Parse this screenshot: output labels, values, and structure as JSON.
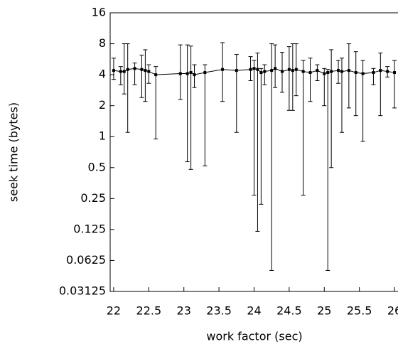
{
  "chart_data": {
    "type": "line",
    "xlabel": "work factor (sec)",
    "ylabel": "seek time (bytes)",
    "ylog": true,
    "color": "#000000",
    "xlim": [
      21.95,
      26.05
    ],
    "ylim": [
      0.03125,
      16
    ],
    "xticks": [
      22,
      22.5,
      23,
      23.5,
      24,
      24.5,
      25,
      25.5,
      26
    ],
    "yticks": [
      0.03125,
      0.0625,
      0.125,
      0.25,
      0.5,
      1,
      2,
      4,
      8,
      16
    ],
    "x": [
      22.0,
      22.1,
      22.15,
      22.2,
      22.3,
      22.4,
      22.45,
      22.5,
      22.6,
      22.95,
      23.05,
      23.1,
      23.15,
      23.3,
      23.55,
      23.75,
      23.95,
      24.0,
      24.05,
      24.1,
      24.15,
      24.25,
      24.3,
      24.4,
      24.5,
      24.55,
      24.6,
      24.7,
      24.8,
      24.9,
      25.0,
      25.05,
      25.1,
      25.2,
      25.25,
      25.35,
      25.45,
      25.55,
      25.7,
      25.8,
      25.9,
      26.0
    ],
    "values": [
      4.4,
      4.3,
      4.3,
      4.5,
      4.6,
      4.5,
      4.4,
      4.3,
      4.0,
      4.1,
      4.1,
      4.2,
      4.0,
      4.2,
      4.5,
      4.4,
      4.5,
      4.6,
      4.5,
      4.2,
      4.3,
      4.4,
      4.6,
      4.3,
      4.5,
      4.4,
      4.5,
      4.3,
      4.2,
      4.4,
      4.1,
      4.2,
      4.3,
      4.4,
      4.3,
      4.4,
      4.2,
      4.1,
      4.2,
      4.4,
      4.3,
      4.2
    ],
    "lower": [
      3.6,
      3.2,
      2.6,
      1.1,
      3.2,
      2.4,
      2.2,
      3.3,
      0.95,
      2.3,
      0.57,
      0.48,
      3.0,
      0.52,
      2.2,
      1.1,
      3.5,
      0.27,
      0.12,
      0.22,
      3.2,
      0.05,
      3.0,
      2.7,
      1.8,
      1.8,
      2.5,
      0.27,
      2.2,
      3.5,
      2.0,
      0.05,
      0.5,
      3.3,
      1.1,
      1.9,
      1.6,
      0.9,
      3.2,
      1.6,
      3.8,
      1.9
    ],
    "upper": [
      5.8,
      4.8,
      8,
      8,
      5.2,
      6.2,
      7,
      5,
      4.8,
      7.8,
      7.8,
      7.6,
      5,
      5,
      8.2,
      6.3,
      6,
      5.5,
      6.5,
      4.6,
      5,
      8,
      7.8,
      6.6,
      7.5,
      8,
      8,
      5.5,
      5.8,
      5,
      4.6,
      4.5,
      7,
      5.5,
      5.8,
      8,
      6.7,
      5.5,
      4.6,
      6.5,
      4.8,
      5.5
    ]
  }
}
